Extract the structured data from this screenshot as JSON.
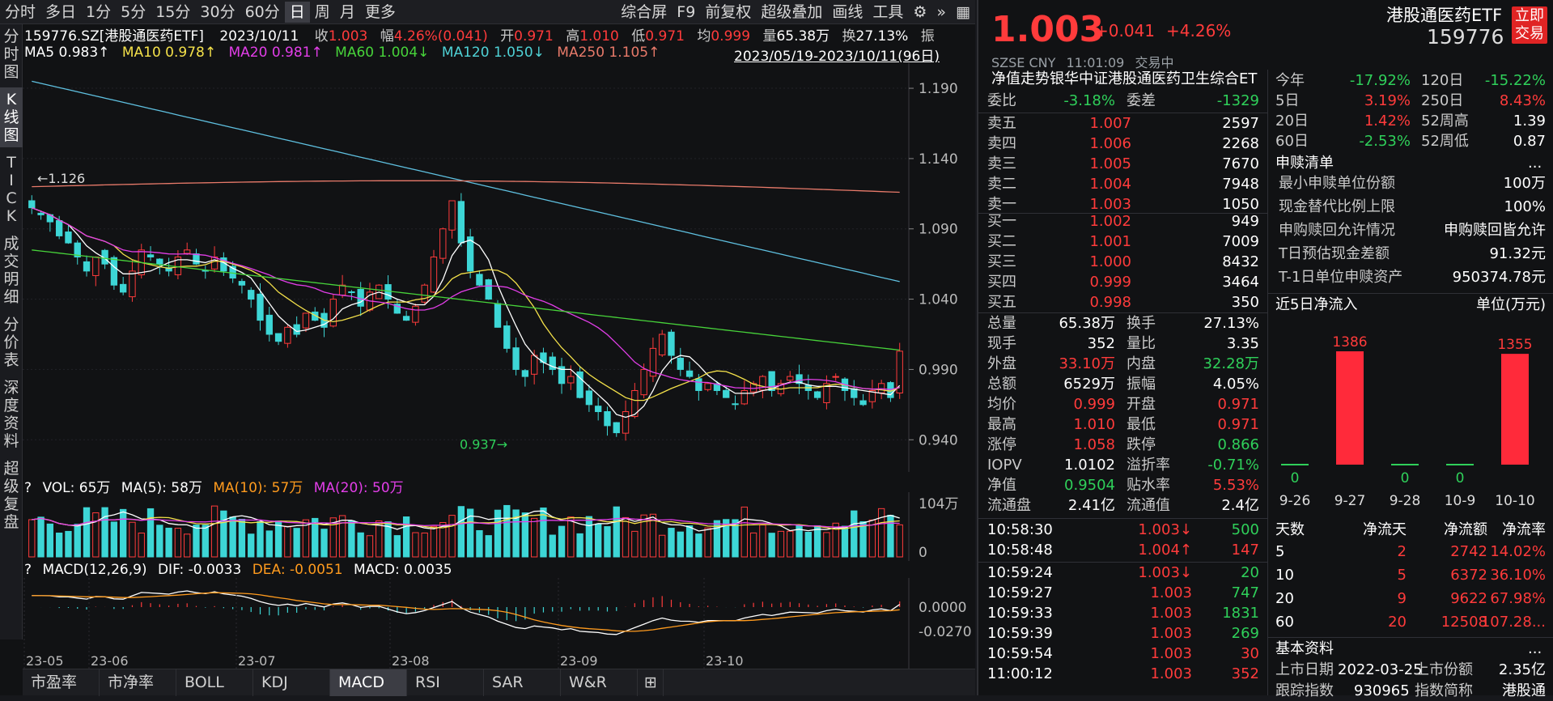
{
  "toolbar": {
    "periods": [
      "分时",
      "多日",
      "1分",
      "5分",
      "15分",
      "30分",
      "60分",
      "日",
      "周",
      "月",
      "更多"
    ],
    "selected": "日",
    "tools": [
      "综合屏",
      "F9",
      "前复权",
      "超级叠加",
      "画线",
      "工具"
    ]
  },
  "sidebar": [
    "分时图",
    "K线图",
    "TICK",
    "成交明细",
    "分价表",
    "深度资料",
    "超级复盘"
  ],
  "info": {
    "code_name": "159776.SZ[港股通医药ETF]",
    "date": "2023/10/11",
    "close_label": "收",
    "close": "1.003",
    "chg_label": "幅",
    "chg": "4.26%(0.041)",
    "open_label": "开",
    "open": "0.971",
    "high_label": "高",
    "high": "1.010",
    "low_label": "低",
    "low": "0.971",
    "avg_label": "均",
    "avg": "0.999",
    "vol_label": "量",
    "vol": "65.38万",
    "turn_label": "换",
    "turn": "27.13%",
    "amp_label": "振"
  },
  "ma": {
    "ma5": "MA5 0.983↑",
    "ma10": "MA10 0.978↑",
    "ma20": "MA20 0.981↑",
    "ma60": "MA60 1.004↓",
    "ma120": "MA120 1.050↓",
    "ma250": "MA250 1.105↑",
    "range": "2023/05/19-2023/10/11(96日)"
  },
  "kline": {
    "yticks": [
      "1.190",
      "1.140",
      "1.090",
      "1.040",
      "0.990",
      "0.940"
    ],
    "high_mark": "1.126",
    "low_mark": "0.937"
  },
  "vol": {
    "label": "VOL: 65万",
    "ma5": "MA(5): 58万",
    "ma10": "MA(10): 57万",
    "ma20": "MA(20): 50万",
    "yticks": [
      "104万",
      "0"
    ]
  },
  "macd": {
    "label": "MACD(12,26,9)",
    "dif": "DIF: -0.0033",
    "dea": "DEA: -0.0051",
    "macd": "MACD: 0.0035",
    "yticks": [
      "0.0000",
      "-0.0270"
    ]
  },
  "xaxis": [
    "23-05",
    "23-06",
    "23-07",
    "23-08",
    "23-09",
    "23-10"
  ],
  "bottom_tabs": [
    "市盈率",
    "市净率",
    "BOLL",
    "KDJ",
    "MACD",
    "RSI",
    "SAR",
    "W&R"
  ],
  "bottom_selected": "MACD",
  "colors": {
    "up": "#ff3b3b",
    "down": "#3dd6d6",
    "ma5": "#ffffff",
    "ma10": "#f4e14a",
    "ma20": "#e23ee8",
    "ma60": "#47d33a",
    "ma120": "#5fc0e0",
    "ma250": "#e87a6a"
  },
  "quote": {
    "price": "1.003",
    "change": "+0.041",
    "pct": "+4.26%",
    "name": "港股通医药ETF",
    "code": "159776",
    "trade_btn": "立即交易",
    "exchange": "SZSE",
    "currency": "CNY",
    "time": "11:01:09",
    "status": "交易中",
    "nav_title": "净值走势",
    "index_title": "银华中证港股通医药卫生综合ET"
  },
  "book": {
    "weibi_label": "委比",
    "weibi": "-3.18%",
    "weicha_label": "委差",
    "weicha": "-1329",
    "asks": [
      [
        "卖五",
        "1.007",
        "2597"
      ],
      [
        "卖四",
        "1.006",
        "2268"
      ],
      [
        "卖三",
        "1.005",
        "7670"
      ],
      [
        "卖二",
        "1.004",
        "7948"
      ],
      [
        "卖一",
        "1.003",
        "1050"
      ]
    ],
    "bids": [
      [
        "买一",
        "1.002",
        "949"
      ],
      [
        "买二",
        "1.001",
        "7009"
      ],
      [
        "买三",
        "1.000",
        "8432"
      ],
      [
        "买四",
        "0.999",
        "3464"
      ],
      [
        "买五",
        "0.998",
        "350"
      ]
    ]
  },
  "stats": [
    [
      "总量",
      "65.38万",
      "white",
      "换手",
      "27.13%",
      "white"
    ],
    [
      "现手",
      "352",
      "white",
      "量比",
      "3.35",
      "white"
    ],
    [
      "外盘",
      "33.10万",
      "red",
      "内盘",
      "32.28万",
      "green"
    ],
    [
      "总额",
      "6529万",
      "white",
      "振幅",
      "4.05%",
      "white"
    ],
    [
      "均价",
      "0.999",
      "red",
      "开盘",
      "0.971",
      "red"
    ],
    [
      "最高",
      "1.010",
      "red",
      "最低",
      "0.971",
      "red"
    ],
    [
      "涨停",
      "1.058",
      "red",
      "跌停",
      "0.866",
      "green"
    ],
    [
      "IOPV",
      "1.0102",
      "white",
      "溢折率",
      "-0.71%",
      "green"
    ],
    [
      "净值",
      "0.9504",
      "green",
      "贴水率",
      "5.53%",
      "red"
    ],
    [
      "流通盘",
      "2.41亿",
      "white",
      "流通值",
      "2.4亿",
      "white"
    ]
  ],
  "ticks": [
    [
      "10:58:30",
      "1.003",
      "↓",
      "500",
      "green"
    ],
    [
      "10:58:48",
      "1.004",
      "↑",
      "147",
      "red"
    ],
    [
      "10:59:24",
      "1.003",
      "↓",
      "20",
      "green"
    ],
    [
      "10:59:27",
      "1.003",
      "",
      "747",
      "green"
    ],
    [
      "10:59:33",
      "1.003",
      "",
      "1831",
      "green"
    ],
    [
      "10:59:39",
      "1.003",
      "",
      "269",
      "green"
    ],
    [
      "10:59:54",
      "1.003",
      "",
      "30",
      "red"
    ],
    [
      "11:00:12",
      "1.003",
      "",
      "352",
      "red"
    ]
  ],
  "perf": [
    [
      "今年",
      "-17.92%",
      "green",
      "120日",
      "-15.22%",
      "green"
    ],
    [
      "5日",
      "3.19%",
      "red",
      "250日",
      "8.43%",
      "red"
    ],
    [
      "20日",
      "1.42%",
      "red",
      "52周高",
      "1.39",
      "white"
    ],
    [
      "60日",
      "-2.53%",
      "green",
      "52周低",
      "0.87",
      "white"
    ]
  ],
  "subscription": {
    "title": "申赎清单",
    "more": "...",
    "rows": [
      [
        "最小申赎单位份额",
        "100万"
      ],
      [
        "现金替代比例上限",
        "100%"
      ],
      [
        "申购赎回允许情况",
        "申购赎回皆允许"
      ],
      [
        "T日预估现金差额",
        "91.32元"
      ],
      [
        "T-1日单位申赎资产",
        "950374.78元"
      ]
    ]
  },
  "flow": {
    "title": "近5日净流入",
    "unit": "单位(万元)",
    "labels": [
      "9-26",
      "9-27",
      "9-28",
      "10-9",
      "10-10"
    ],
    "values": [
      0,
      1386,
      0,
      0,
      1355
    ]
  },
  "flow_table": {
    "headers": [
      "天数",
      "净流天",
      "净流额",
      "净流率"
    ],
    "rows": [
      [
        "5",
        "2",
        "2742",
        "14.02%"
      ],
      [
        "10",
        "5",
        "6372",
        "36.10%"
      ],
      [
        "20",
        "9",
        "9622",
        "67.98%"
      ],
      [
        "60",
        "20",
        "12508",
        "107.28..."
      ]
    ]
  },
  "basic": {
    "title": "基本资料",
    "more": "...",
    "list_date_label": "上市日期",
    "list_date": "2022-03-25",
    "shares_label": "上市份额",
    "shares": "2.35亿",
    "track_label": "跟踪指数",
    "track_code": "930965",
    "idx_label": "指数简称",
    "idx_name": "港股通"
  }
}
